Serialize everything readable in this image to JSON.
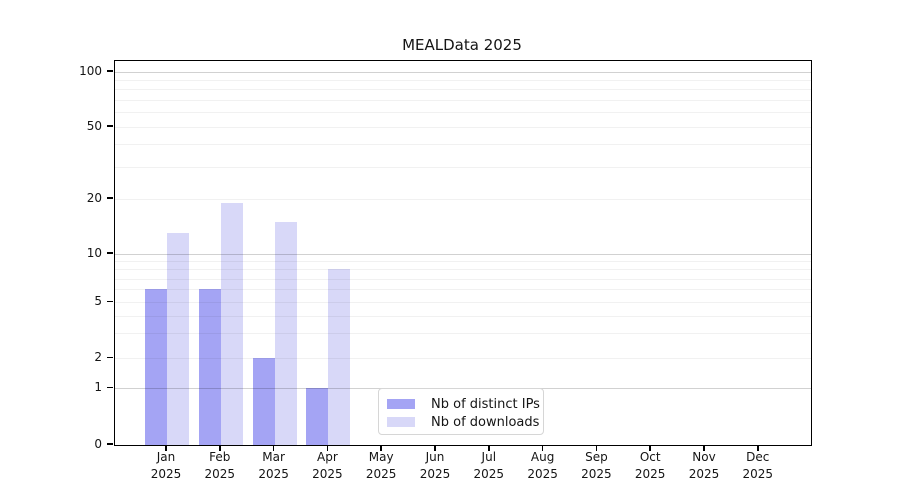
{
  "title": "MEALData 2025",
  "chart_data": {
    "type": "bar",
    "x_month_labels": [
      "Jan",
      "Feb",
      "Mar",
      "Apr",
      "May",
      "Jun",
      "Jul",
      "Aug",
      "Sep",
      "Oct",
      "Nov",
      "Dec"
    ],
    "x_year_label": "2025",
    "series": [
      {
        "name": "Nb of distinct IPs",
        "color": "#a4a4f4",
        "values": [
          6,
          6,
          2,
          1,
          0,
          0,
          0,
          0,
          0,
          0,
          0,
          0
        ]
      },
      {
        "name": "Nb of downloads",
        "color": "#d8d8f8",
        "values": [
          13,
          19,
          15,
          8,
          0,
          0,
          0,
          0,
          0,
          0,
          0,
          0
        ]
      }
    ],
    "y_axis": {
      "ticks": [
        0,
        1,
        2,
        5,
        10,
        20,
        50,
        100
      ],
      "scale": "log-like (linear 0-1)",
      "major_gridlines": [
        1,
        10,
        100
      ],
      "minor_gridlines": [
        2,
        3,
        4,
        5,
        6,
        7,
        8,
        9,
        20,
        30,
        40,
        50,
        60,
        70,
        80,
        90
      ],
      "ylim": [
        0,
        120
      ]
    },
    "grid": true,
    "legend_position": "lower center"
  }
}
